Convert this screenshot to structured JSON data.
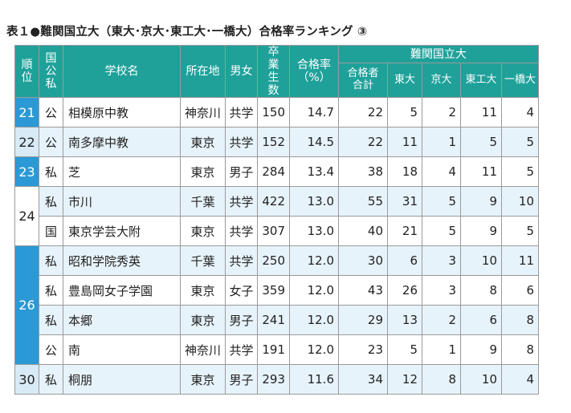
{
  "title": "表１●難関国立大（東大･京大･東工大･一橋大）合格率ランキング ③",
  "headers": {
    "rank": "順位",
    "type": "国公私",
    "school": "学校名",
    "location": "所在地",
    "gender": "男女",
    "grads": "卒業生数",
    "rate": "合格率（%）",
    "group": "難関国立大",
    "total": "合格者合計",
    "todai": "東大",
    "kyodai": "京大",
    "tokodai": "東工大",
    "hitotsubashi": "一橋大"
  },
  "groups": [
    {
      "rank": "21",
      "style": "hl",
      "rows": [
        {
          "type": "公",
          "name": "相模原中教",
          "loc": "神奈川",
          "gender": "共学",
          "grads": "150",
          "rate": "14.7",
          "total": "22",
          "todai": "5",
          "kyodai": "2",
          "tokodai": "11",
          "hitotsubashi": "4"
        }
      ]
    },
    {
      "rank": "22",
      "style": "shade",
      "rows": [
        {
          "type": "公",
          "name": "南多摩中教",
          "loc": "東京",
          "gender": "共学",
          "grads": "152",
          "rate": "14.5",
          "total": "22",
          "todai": "11",
          "kyodai": "1",
          "tokodai": "5",
          "hitotsubashi": "5"
        }
      ]
    },
    {
      "rank": "23",
      "style": "hl",
      "rows": [
        {
          "type": "私",
          "name": "芝",
          "loc": "東京",
          "gender": "男子",
          "grads": "284",
          "rate": "13.4",
          "total": "38",
          "todai": "18",
          "kyodai": "4",
          "tokodai": "11",
          "hitotsubashi": "5"
        }
      ]
    },
    {
      "rank": "24",
      "style": "plain",
      "rows": [
        {
          "type": "私",
          "name": "市川",
          "loc": "千葉",
          "gender": "共学",
          "grads": "422",
          "rate": "13.0",
          "total": "55",
          "todai": "31",
          "kyodai": "5",
          "tokodai": "9",
          "hitotsubashi": "10"
        },
        {
          "type": "国",
          "name": "東京学芸大附",
          "loc": "東京",
          "gender": "共学",
          "grads": "307",
          "rate": "13.0",
          "total": "40",
          "todai": "21",
          "kyodai": "5",
          "tokodai": "9",
          "hitotsubashi": "5"
        }
      ]
    },
    {
      "rank": "26",
      "style": "hl",
      "rows": [
        {
          "type": "私",
          "name": "昭和学院秀英",
          "loc": "千葉",
          "gender": "共学",
          "grads": "250",
          "rate": "12.0",
          "total": "30",
          "todai": "6",
          "kyodai": "3",
          "tokodai": "10",
          "hitotsubashi": "11"
        },
        {
          "type": "私",
          "name": "豊島岡女子学園",
          "loc": "東京",
          "gender": "女子",
          "grads": "359",
          "rate": "12.0",
          "total": "43",
          "todai": "26",
          "kyodai": "3",
          "tokodai": "8",
          "hitotsubashi": "6"
        },
        {
          "type": "私",
          "name": "本郷",
          "loc": "東京",
          "gender": "男子",
          "grads": "241",
          "rate": "12.0",
          "total": "29",
          "todai": "13",
          "kyodai": "2",
          "tokodai": "6",
          "hitotsubashi": "8"
        },
        {
          "type": "公",
          "name": "南",
          "loc": "神奈川",
          "gender": "共学",
          "grads": "191",
          "rate": "12.0",
          "total": "23",
          "todai": "5",
          "kyodai": "1",
          "tokodai": "9",
          "hitotsubashi": "8"
        }
      ]
    },
    {
      "rank": "30",
      "style": "shade",
      "rows": [
        {
          "type": "私",
          "name": "桐朋",
          "loc": "東京",
          "gender": "男子",
          "grads": "293",
          "rate": "11.6",
          "total": "34",
          "todai": "12",
          "kyodai": "8",
          "tokodai": "10",
          "hitotsubashi": "4"
        }
      ]
    }
  ]
}
